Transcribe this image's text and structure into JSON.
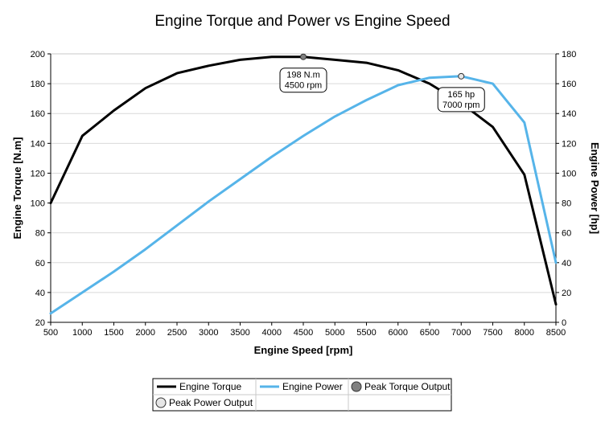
{
  "chart_data": {
    "type": "line",
    "title": "Engine Torque and Power vs Engine Speed",
    "xlabel": "Engine Speed [rpm]",
    "ylabel_left": "Engine Torque [N.m]",
    "ylabel_right": "Engine Power [hp]",
    "xlim": [
      500,
      8500
    ],
    "ylim_left": [
      20,
      200
    ],
    "ylim_right": [
      0,
      180
    ],
    "x_ticks": [
      500,
      1000,
      1500,
      2000,
      2500,
      3000,
      3500,
      4000,
      4500,
      5000,
      5500,
      6000,
      6500,
      7000,
      7500,
      8000,
      8500
    ],
    "y_left_ticks": [
      20,
      40,
      60,
      80,
      100,
      120,
      140,
      160,
      180,
      200
    ],
    "y_right_ticks": [
      0,
      20,
      40,
      60,
      80,
      100,
      120,
      140,
      160,
      180
    ],
    "grid": "horizontal",
    "legend_position": "bottom",
    "series": [
      {
        "name": "Engine Torque",
        "axis": "left",
        "color": "#000000",
        "x": [
          500,
          1000,
          1500,
          2000,
          2500,
          3000,
          3500,
          4000,
          4500,
          5000,
          5500,
          6000,
          6500,
          7000,
          7500,
          8000,
          8500
        ],
        "values": [
          100,
          145,
          162,
          177,
          187,
          192,
          196,
          198,
          198,
          196,
          194,
          189,
          180,
          167,
          151,
          119,
          32
        ]
      },
      {
        "name": "Engine Power",
        "axis": "right",
        "color": "#56b4e9",
        "x": [
          500,
          1000,
          1500,
          2000,
          2500,
          3000,
          3500,
          4000,
          4500,
          5000,
          5500,
          6000,
          6500,
          7000,
          7500,
          8000,
          8500
        ],
        "values": [
          6,
          20,
          34,
          49,
          65,
          81,
          96,
          111,
          125,
          138,
          149,
          159,
          164,
          165,
          160,
          134,
          40
        ]
      }
    ],
    "markers": [
      {
        "name": "Peak Torque Output",
        "axis": "left",
        "x": 4500,
        "y": 198,
        "fill": "#808080",
        "label_lines": [
          "198  N.m",
          "4500 rpm"
        ]
      },
      {
        "name": "Peak Power Output",
        "axis": "right",
        "x": 7000,
        "y": 165,
        "fill": "#e6e6e6",
        "label_lines": [
          "165  hp",
          "7000 rpm"
        ]
      }
    ],
    "legend": [
      {
        "label": "Engine Torque",
        "kind": "line",
        "color": "#000000"
      },
      {
        "label": "Engine Power",
        "kind": "line",
        "color": "#56b4e9"
      },
      {
        "label": "Peak Torque Output",
        "kind": "marker",
        "color": "#808080"
      },
      {
        "label": "Peak Power Output",
        "kind": "marker",
        "color": "#e6e6e6"
      }
    ]
  }
}
